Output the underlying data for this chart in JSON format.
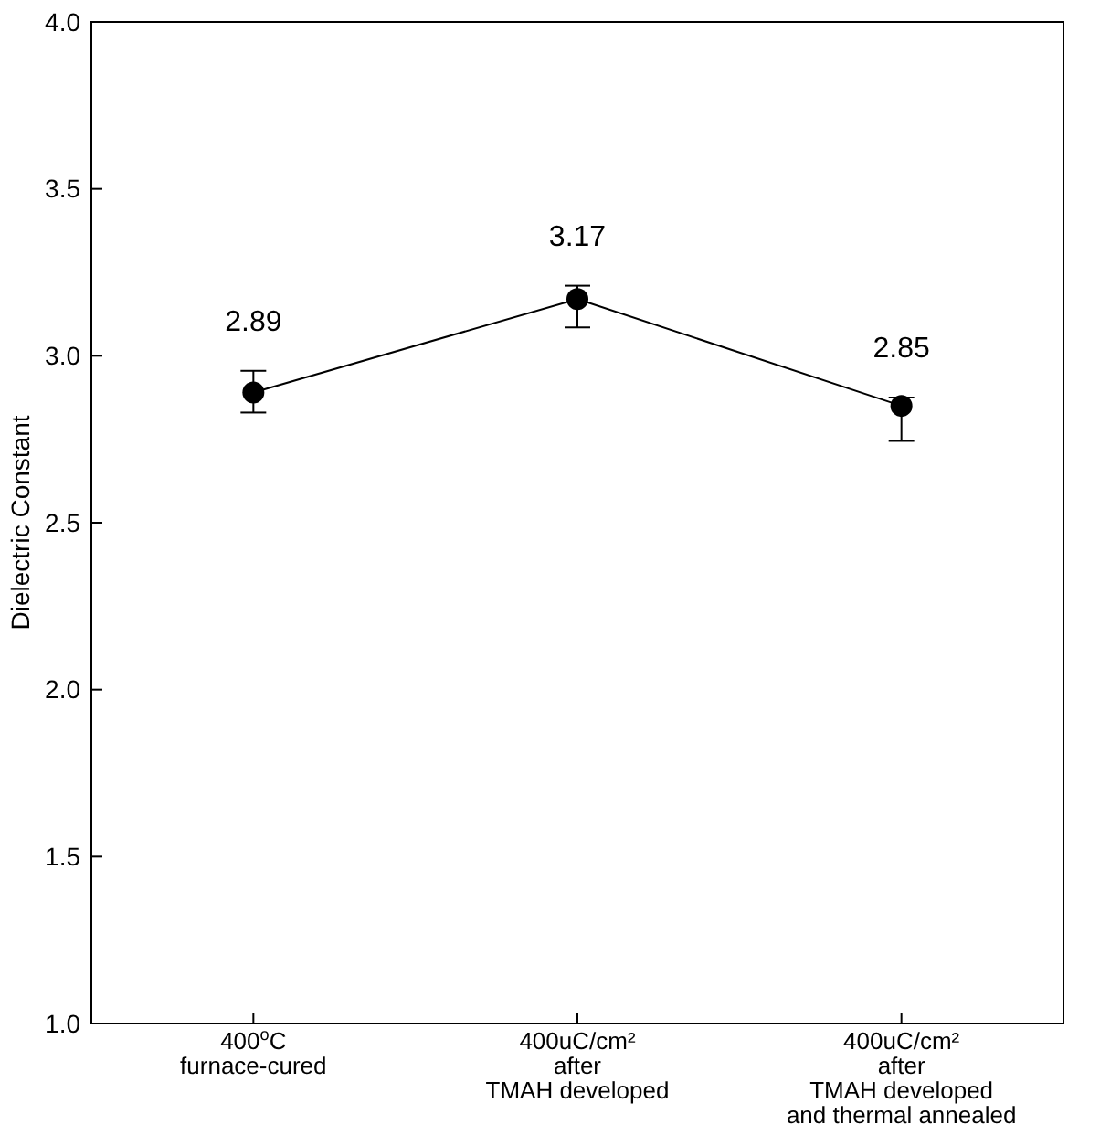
{
  "chart_data": {
    "type": "line",
    "ylabel": "Dielectric Constant",
    "categories": [
      "400$^{o}$C\nfurnace-cured",
      "400uC/cm²\nafter\nTMAH developed",
      "400uC/cm²\nafter\nTMAH developed\nand thermal annealed"
    ],
    "series": [
      {
        "color": "#000000",
        "values": [
          2.89,
          3.17,
          2.85
        ],
        "errors": [
          [
            2.83,
            2.955
          ],
          [
            3.085,
            3.21
          ],
          [
            2.745,
            2.875
          ]
        ],
        "value_labels": [
          "2.89",
          "3.17",
          "2.85"
        ]
      }
    ],
    "ylim": [
      1,
      4
    ],
    "yticks": [
      {
        "value": 1,
        "label": "1.0"
      },
      {
        "value": 1.5,
        "label": "1.5"
      },
      {
        "value": 2,
        "label": "2.0"
      },
      {
        "value": 2.5,
        "label": "2.5"
      },
      {
        "value": 3,
        "label": "3.0"
      },
      {
        "value": 3.5,
        "label": "3.5"
      },
      {
        "value": 4,
        "label": "4.0"
      }
    ],
    "marker": "circle",
    "line_style": "solid",
    "grid": false
  }
}
